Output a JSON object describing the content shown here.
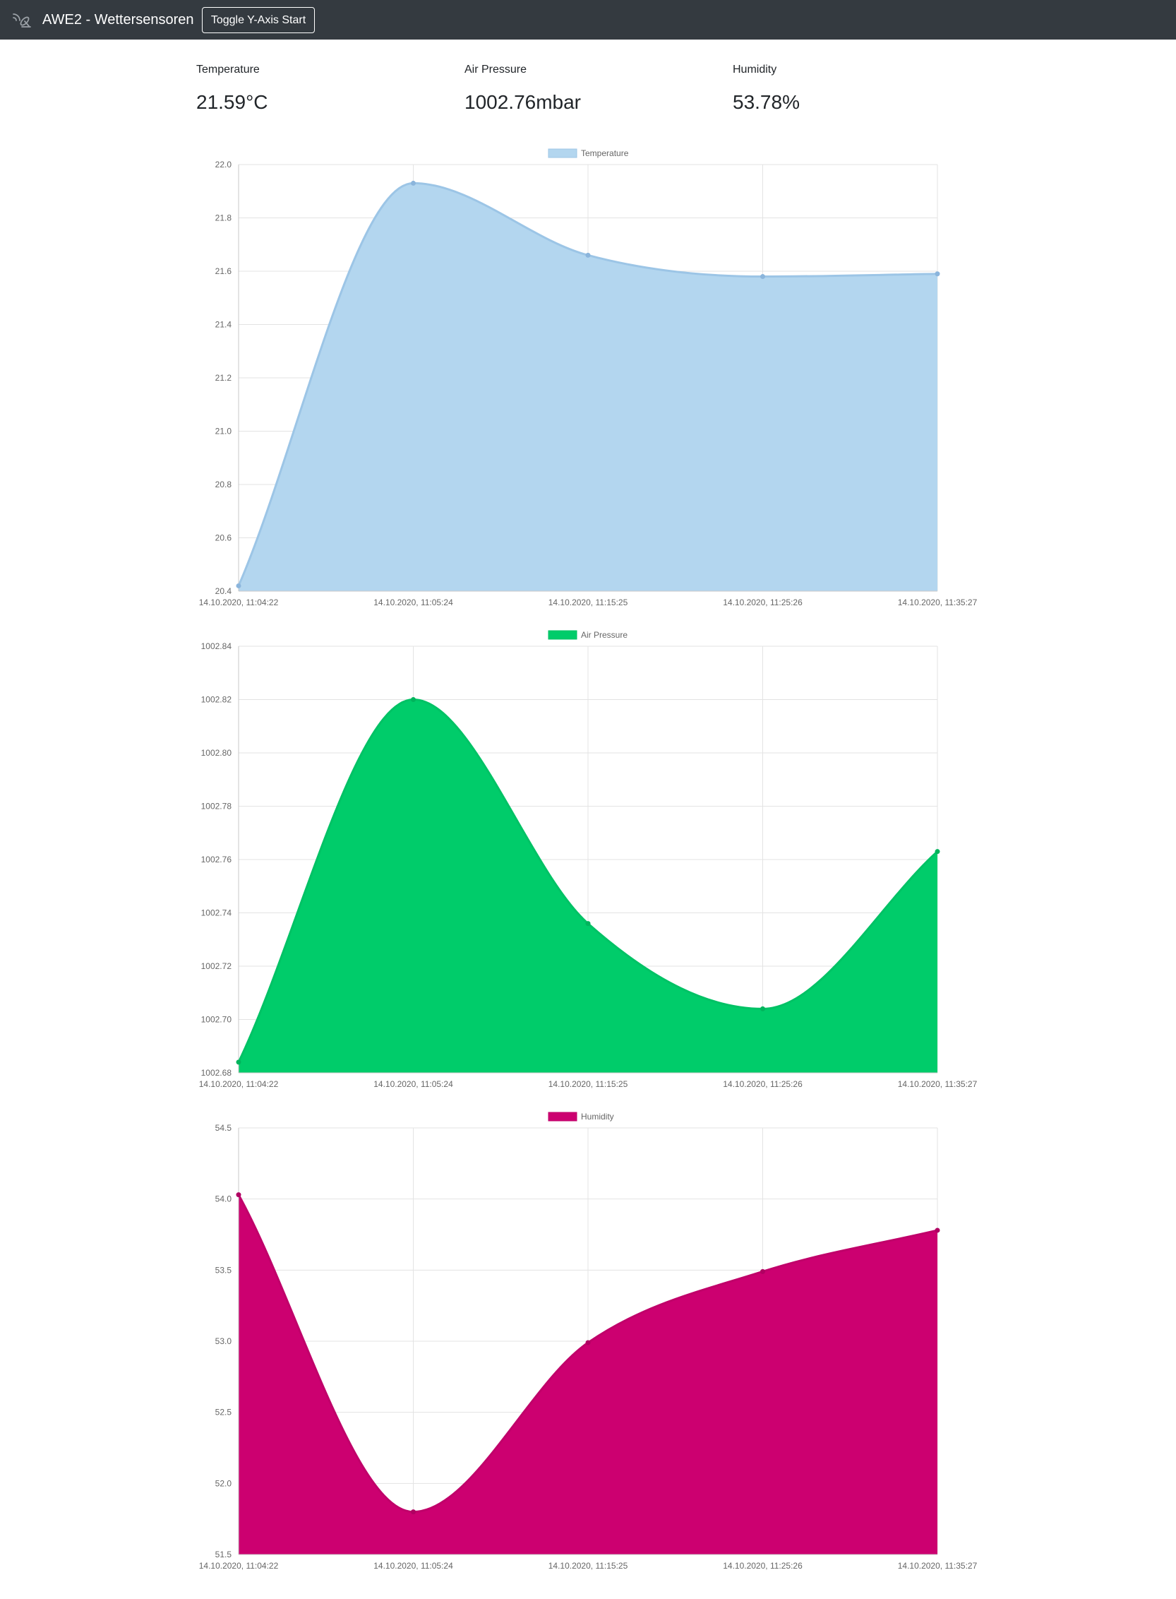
{
  "navbar": {
    "brand_icon": "satellite-dish-icon",
    "title": "AWE2 - Wettersensoren",
    "toggle_button_label": "Toggle Y-Axis Start"
  },
  "readings": [
    {
      "label": "Temperature",
      "value": "21.59°C"
    },
    {
      "label": "Air Pressure",
      "value": "1002.76mbar"
    },
    {
      "label": "Humidity",
      "value": "53.78%"
    }
  ],
  "chart_data": [
    {
      "type": "area",
      "legend": "Temperature",
      "legend_position": "top",
      "fill_color": "#b3d6ef",
      "line_color": "#9cc5e6",
      "point_color": "#8bb5dc",
      "categories": [
        "14.10.2020, 11:04:22",
        "14.10.2020, 11:05:24",
        "14.10.2020, 11:15:25",
        "14.10.2020, 11:25:26",
        "14.10.2020, 11:35:27"
      ],
      "values": [
        20.42,
        21.93,
        21.66,
        21.58,
        21.59
      ],
      "ylim": [
        20.4,
        22.0
      ],
      "yticks": [
        "20.4",
        "20.6",
        "20.8",
        "21.0",
        "21.2",
        "21.4",
        "21.6",
        "21.8",
        "22.0"
      ],
      "grid": true
    },
    {
      "type": "area",
      "legend": "Air Pressure",
      "legend_position": "top",
      "fill_color": "#00cc6a",
      "line_color": "#00c265",
      "point_color": "#00b45c",
      "categories": [
        "14.10.2020, 11:04:22",
        "14.10.2020, 11:05:24",
        "14.10.2020, 11:15:25",
        "14.10.2020, 11:25:26",
        "14.10.2020, 11:35:27"
      ],
      "values": [
        1002.684,
        1002.82,
        1002.736,
        1002.704,
        1002.763
      ],
      "ylim": [
        1002.68,
        1002.84
      ],
      "yticks": [
        "1002.68",
        "1002.70",
        "1002.72",
        "1002.74",
        "1002.76",
        "1002.78",
        "1002.80",
        "1002.82",
        "1002.84"
      ],
      "grid": true
    },
    {
      "type": "area",
      "legend": "Humidity",
      "legend_position": "top",
      "fill_color": "#cc0070",
      "line_color": "#c0006a",
      "point_color": "#b00062",
      "categories": [
        "14.10.2020, 11:04:22",
        "14.10.2020, 11:05:24",
        "14.10.2020, 11:15:25",
        "14.10.2020, 11:25:26",
        "14.10.2020, 11:35:27"
      ],
      "values": [
        54.03,
        51.8,
        52.99,
        53.49,
        53.78
      ],
      "ylim": [
        51.5,
        54.5
      ],
      "yticks": [
        "51.5",
        "52.0",
        "52.5",
        "53.0",
        "53.5",
        "54.0",
        "54.5"
      ],
      "grid": true
    }
  ]
}
